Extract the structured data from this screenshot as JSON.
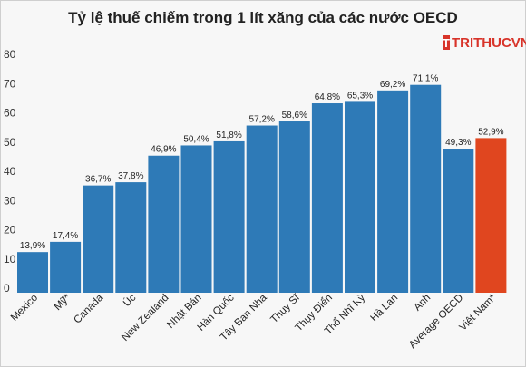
{
  "header": {
    "title": "Tỷ lệ thuế chiếm trong 1 lít xăng của các nước OECD"
  },
  "logo": {
    "mark": "T",
    "text": "TRITHUCVN"
  },
  "chart_data": {
    "type": "bar",
    "title": "Tỷ lệ thuế chiếm trong 1 lít xăng của các nước OECD",
    "categories": [
      "Mexico",
      "Mỹ*",
      "Canada",
      "Úc",
      "New Zealand",
      "Nhật Bản",
      "Hàn Quốc",
      "Tây Ban Nha",
      "Thụy Sĩ",
      "Thụy Điển",
      "Thổ Nhĩ Kỳ",
      "Hà Lan",
      "Anh",
      "Average OECD",
      "Việt Nam*"
    ],
    "values": [
      13.9,
      17.4,
      36.7,
      37.8,
      46.9,
      50.4,
      51.8,
      57.2,
      58.6,
      64.8,
      65.3,
      69.2,
      71.1,
      49.3,
      52.9
    ],
    "data_labels": [
      "13,9%",
      "17,4%",
      "36,7%",
      "37,8%",
      "46,9%",
      "50,4%",
      "51,8%",
      "57,2%",
      "58,6%",
      "64,8%",
      "65,3%",
      "69,2%",
      "71,1%",
      "49,3%",
      "52,9%"
    ],
    "yticks": [
      "0",
      "10",
      "20",
      "30",
      "40",
      "50",
      "60",
      "70",
      "80"
    ],
    "ylim": [
      0,
      80
    ],
    "grid": false,
    "colors": {
      "default": "#2e7ab7",
      "highlight": "#e0461f"
    },
    "highlight_index": 14
  }
}
